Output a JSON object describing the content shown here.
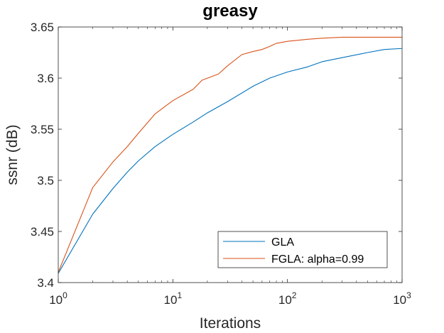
{
  "chart_data": {
    "type": "line",
    "title": "greasy",
    "xlabel": "Iterations",
    "ylabel": "ssnr (dB)",
    "xscale": "log",
    "xlim": [
      1,
      1000
    ],
    "ylim": [
      3.4,
      3.65
    ],
    "xticks": [
      {
        "value": 1,
        "base": "10",
        "exp": "0"
      },
      {
        "value": 10,
        "base": "10",
        "exp": "1"
      },
      {
        "value": 100,
        "base": "10",
        "exp": "2"
      },
      {
        "value": 1000,
        "base": "10",
        "exp": "3"
      }
    ],
    "yticks": [
      {
        "value": 3.4,
        "label": "3.4"
      },
      {
        "value": 3.45,
        "label": "3.45"
      },
      {
        "value": 3.5,
        "label": "3.5"
      },
      {
        "value": 3.55,
        "label": "3.55"
      },
      {
        "value": 3.6,
        "label": "3.6"
      },
      {
        "value": 3.65,
        "label": "3.65"
      }
    ],
    "legend_position": "bottom-right",
    "series": [
      {
        "name": "GLA",
        "color": "#0072BD",
        "x": [
          1,
          2,
          3,
          4,
          5,
          7,
          10,
          15,
          20,
          30,
          50,
          70,
          100,
          150,
          200,
          300,
          500,
          700,
          1000
        ],
        "y": [
          3.409,
          3.467,
          3.492,
          3.508,
          3.519,
          3.533,
          3.545,
          3.557,
          3.566,
          3.577,
          3.592,
          3.6,
          3.606,
          3.611,
          3.616,
          3.62,
          3.625,
          3.628,
          3.629
        ]
      },
      {
        "name": "FGLA: alpha=0.99",
        "color": "#D95319",
        "x": [
          1,
          2,
          3,
          4,
          5,
          7,
          10,
          15,
          18,
          25,
          30,
          40,
          50,
          60,
          70,
          80,
          100,
          150,
          200,
          300,
          500,
          1000
        ],
        "y": [
          3.41,
          3.493,
          3.518,
          3.533,
          3.546,
          3.565,
          3.578,
          3.589,
          3.598,
          3.604,
          3.612,
          3.623,
          3.626,
          3.628,
          3.631,
          3.634,
          3.636,
          3.638,
          3.639,
          3.64,
          3.64,
          3.64
        ]
      }
    ]
  }
}
